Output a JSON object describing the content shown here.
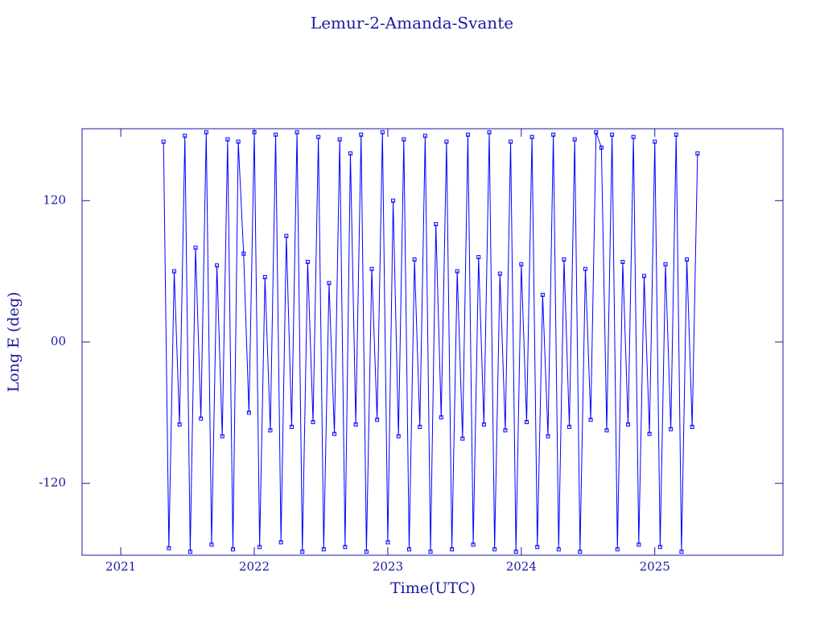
{
  "chart_data": {
    "type": "line",
    "title": "Lemur-2-Amanda-Svante",
    "x_label": "Time(UTC)",
    "y_label": "Long E (deg)",
    "x": [
      2021.32,
      2021.36,
      2021.4,
      2021.44,
      2021.48,
      2021.52,
      2021.56,
      2021.6,
      2021.64,
      2021.68,
      2021.72,
      2021.76,
      2021.8,
      2021.84,
      2021.88,
      2021.92,
      2021.96,
      2022.0,
      2022.04,
      2022.08,
      2022.12,
      2022.16,
      2022.2,
      2022.24,
      2022.28,
      2022.32,
      2022.36,
      2022.4,
      2022.44,
      2022.48,
      2022.52,
      2022.56,
      2022.6,
      2022.64,
      2022.68,
      2022.72,
      2022.76,
      2022.8,
      2022.84,
      2022.88,
      2022.92,
      2022.96,
      2023.0,
      2023.04,
      2023.08,
      2023.12,
      2023.16,
      2023.2,
      2023.24,
      2023.28,
      2023.32,
      2023.36,
      2023.4,
      2023.44,
      2023.48,
      2023.52,
      2023.56,
      2023.6,
      2023.64,
      2023.68,
      2023.72,
      2023.76,
      2023.8,
      2023.84,
      2023.88,
      2023.92,
      2023.96,
      2024.0,
      2024.04,
      2024.08,
      2024.12,
      2024.16,
      2024.2,
      2024.24,
      2024.28,
      2024.32,
      2024.36,
      2024.4,
      2024.44,
      2024.48,
      2024.52,
      2024.56,
      2024.6,
      2024.64,
      2024.68,
      2024.72,
      2024.76,
      2024.8,
      2024.84,
      2024.88,
      2024.92,
      2024.96,
      2025.0,
      2025.04,
      2025.08,
      2025.12,
      2025.16,
      2025.2,
      2025.24,
      2025.28,
      2025.32
    ],
    "series": [
      {
        "color": "#0000ff",
        "values": [
          170,
          -175,
          60,
          -70,
          175,
          -178,
          80,
          -65,
          178,
          -172,
          65,
          -80,
          172,
          -176,
          170,
          75,
          -60,
          178,
          -174,
          55,
          -75,
          176,
          -170,
          90,
          -72,
          178,
          -178,
          68,
          -68,
          174,
          -176,
          50,
          -78,
          172,
          -174,
          160,
          -70,
          176,
          -178,
          62,
          -66,
          178,
          -170,
          120,
          -80,
          172,
          -176,
          70,
          -72,
          175,
          -178,
          100,
          -64,
          170,
          -176,
          60,
          -82,
          176,
          -172,
          72,
          -70,
          178,
          -176,
          58,
          -75,
          170,
          -178,
          66,
          -68,
          174,
          -174,
          40,
          -80,
          176,
          -176,
          70,
          -72,
          172,
          -178,
          62,
          -66,
          178,
          165,
          -75,
          176,
          -176,
          68,
          -70,
          174,
          -172,
          56,
          -78,
          170,
          -174,
          66,
          -74,
          176,
          -178,
          70,
          -72,
          160
        ]
      }
    ],
    "xlim": [
      2020.71,
      2025.96
    ],
    "xticks": [
      2021,
      2022,
      2023,
      2024,
      2025
    ],
    "ylim": [
      -181,
      181
    ],
    "yticks": [
      120,
      {
        "value": 0,
        "label": "00"
      },
      -120
    ]
  }
}
